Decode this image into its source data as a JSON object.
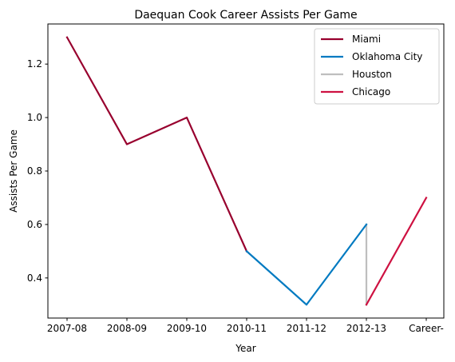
{
  "chart_data": {
    "type": "line",
    "title": "Daequan Cook Career Assists Per Game",
    "xlabel": "Year",
    "ylabel": "Assists Per Game",
    "categories": [
      "2007-08",
      "2008-09",
      "2009-10",
      "2010-11",
      "2011-12",
      "2012-13",
      "Career-"
    ],
    "yticks": [
      0.4,
      0.6,
      0.8,
      1.0,
      1.2
    ],
    "ylim": [
      0.25,
      1.35
    ],
    "grid": false,
    "legend_position": "top-right",
    "series": [
      {
        "name": "Miami",
        "color": "#98002E",
        "points": [
          [
            "2007-08",
            1.3
          ],
          [
            "2008-09",
            0.9
          ],
          [
            "2009-10",
            1.0
          ],
          [
            "2010-11",
            0.5
          ]
        ]
      },
      {
        "name": "Oklahoma City",
        "color": "#007AC1",
        "points": [
          [
            "2010-11",
            0.5
          ],
          [
            "2011-12",
            0.3
          ],
          [
            "2012-13",
            0.6
          ]
        ]
      },
      {
        "name": "Houston",
        "color": "#BEBEBE",
        "points": [
          [
            "2012-13",
            0.6
          ],
          [
            "2012-13",
            0.3
          ]
        ]
      },
      {
        "name": "Chicago",
        "color": "#CE1141",
        "points": [
          [
            "2012-13",
            0.3
          ],
          [
            "Career-",
            0.7
          ]
        ]
      }
    ]
  }
}
